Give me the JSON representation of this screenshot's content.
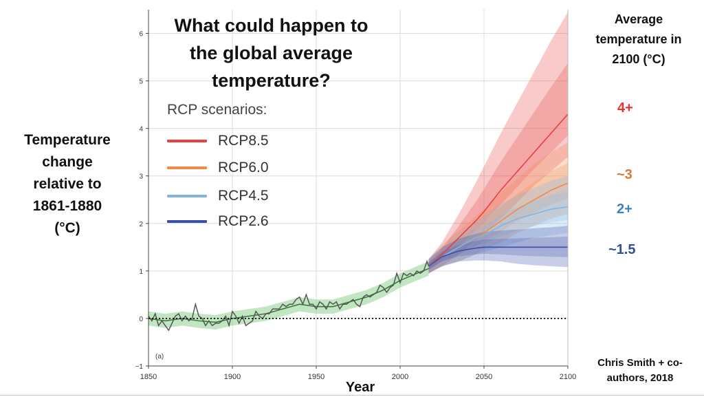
{
  "chart_data": {
    "type": "line",
    "title": "What could happen to the global average temperature?",
    "title_lines": [
      "What could happen to",
      "the global average",
      "temperature?"
    ],
    "xlabel": "Year",
    "ylabel": "Temperature change relative to 1861-1880 (°C)",
    "ylabel_lines": [
      "Temperature",
      "change",
      "relative to",
      "1861-1880",
      "(°C)"
    ],
    "xlim": [
      1850,
      2100
    ],
    "ylim": [
      -1,
      6.5
    ],
    "x_ticks": [
      "1850",
      "1900",
      "1950",
      "2000",
      "2050",
      "2100"
    ],
    "y_ticks": [
      "−1",
      "0",
      "1",
      "2",
      "3",
      "4",
      "5",
      "6"
    ],
    "grid": true,
    "zero_line": "dotted",
    "panel_label": "(a)",
    "legend": {
      "title": "RCP scenarios:",
      "placement": "left-inside",
      "items": [
        {
          "name": "RCP8.5",
          "color": "#e8403f"
        },
        {
          "name": "RCP6.0",
          "color": "#f0894a"
        },
        {
          "name": "RCP4.5",
          "color": "#7eb6e6"
        },
        {
          "name": "RCP2.6",
          "color": "#3b4fa8"
        }
      ]
    },
    "observations": {
      "color": "#555555",
      "x": [
        1850,
        1852,
        1854,
        1856,
        1858,
        1860,
        1862,
        1864,
        1866,
        1868,
        1870,
        1872,
        1874,
        1876,
        1878,
        1880,
        1882,
        1884,
        1886,
        1888,
        1890,
        1892,
        1894,
        1896,
        1898,
        1900,
        1902,
        1904,
        1906,
        1908,
        1910,
        1912,
        1914,
        1916,
        1918,
        1920,
        1922,
        1924,
        1926,
        1928,
        1930,
        1932,
        1934,
        1936,
        1938,
        1940,
        1942,
        1944,
        1946,
        1948,
        1950,
        1952,
        1954,
        1956,
        1958,
        1960,
        1962,
        1964,
        1966,
        1968,
        1970,
        1972,
        1974,
        1976,
        1978,
        1980,
        1982,
        1984,
        1986,
        1988,
        1990,
        1992,
        1994,
        1996,
        1998,
        2000,
        2002,
        2004,
        2006,
        2008,
        2010,
        2012,
        2014,
        2016,
        2017
      ],
      "y": [
        0.05,
        -0.05,
        0.1,
        -0.15,
        -0.05,
        -0.15,
        -0.25,
        -0.1,
        0.05,
        0.1,
        -0.05,
        0.05,
        -0.05,
        0.0,
        0.3,
        0.05,
        0.0,
        -0.15,
        -0.05,
        -0.15,
        -0.1,
        -0.1,
        -0.05,
        0.05,
        -0.15,
        0.15,
        0.05,
        -0.1,
        0.05,
        -0.15,
        -0.1,
        -0.05,
        0.15,
        0.05,
        0.0,
        0.1,
        0.1,
        0.2,
        0.2,
        0.2,
        0.3,
        0.25,
        0.3,
        0.3,
        0.4,
        0.45,
        0.3,
        0.5,
        0.3,
        0.3,
        0.2,
        0.35,
        0.3,
        0.2,
        0.35,
        0.3,
        0.35,
        0.2,
        0.3,
        0.3,
        0.35,
        0.4,
        0.3,
        0.25,
        0.45,
        0.5,
        0.45,
        0.5,
        0.55,
        0.7,
        0.65,
        0.55,
        0.65,
        0.7,
        0.95,
        0.75,
        0.95,
        0.9,
        0.95,
        0.9,
        1.0,
        0.95,
        1.0,
        1.2,
        1.1
      ]
    },
    "historical_model": {
      "color": "#3a7a3a",
      "band_color": "#8fcf8f",
      "x": [
        1850,
        1860,
        1870,
        1880,
        1890,
        1900,
        1910,
        1920,
        1930,
        1940,
        1950,
        1960,
        1970,
        1980,
        1990,
        2000,
        2010,
        2017
      ],
      "y": [
        0.0,
        -0.05,
        0.0,
        -0.05,
        -0.08,
        0.0,
        0.05,
        0.1,
        0.2,
        0.3,
        0.25,
        0.25,
        0.35,
        0.45,
        0.6,
        0.8,
        0.95,
        1.05
      ],
      "band_halfwidth": 0.15
    },
    "x": [
      2017,
      2025,
      2035,
      2045,
      2050,
      2060,
      2070,
      2080,
      2090,
      2100
    ],
    "series": [
      {
        "name": "RCP8.5",
        "color": "#e8403f",
        "y": [
          1.1,
          1.35,
          1.7,
          2.05,
          2.25,
          2.7,
          3.1,
          3.5,
          3.9,
          4.3
        ],
        "lower": [
          0.95,
          1.1,
          1.35,
          1.65,
          1.8,
          2.1,
          2.45,
          2.8,
          3.1,
          3.4
        ],
        "upper": [
          1.25,
          1.6,
          2.2,
          2.85,
          3.2,
          3.9,
          4.55,
          5.2,
          5.85,
          6.45
        ]
      },
      {
        "name": "RCP6.0",
        "color": "#f0894a",
        "y": [
          1.1,
          1.3,
          1.5,
          1.7,
          1.8,
          2.05,
          2.3,
          2.5,
          2.7,
          2.85
        ],
        "lower": [
          0.95,
          1.1,
          1.2,
          1.35,
          1.45,
          1.6,
          1.8,
          1.95,
          2.1,
          2.2
        ],
        "upper": [
          1.25,
          1.55,
          1.85,
          2.15,
          2.3,
          2.65,
          2.95,
          3.25,
          3.5,
          3.7
        ]
      },
      {
        "name": "RCP4.5",
        "color": "#7eb6e6",
        "y": [
          1.1,
          1.3,
          1.5,
          1.7,
          1.75,
          1.95,
          2.1,
          2.2,
          2.3,
          2.35
        ],
        "lower": [
          0.95,
          1.1,
          1.2,
          1.35,
          1.4,
          1.5,
          1.6,
          1.7,
          1.75,
          1.8
        ],
        "upper": [
          1.25,
          1.5,
          1.8,
          2.05,
          2.15,
          2.4,
          2.6,
          2.75,
          2.9,
          3.0
        ]
      },
      {
        "name": "RCP2.6",
        "color": "#3b4fa8",
        "y": [
          1.1,
          1.3,
          1.42,
          1.48,
          1.5,
          1.5,
          1.5,
          1.5,
          1.5,
          1.5
        ],
        "lower": [
          0.95,
          1.1,
          1.2,
          1.22,
          1.22,
          1.2,
          1.15,
          1.12,
          1.1,
          1.08
        ],
        "upper": [
          1.25,
          1.5,
          1.68,
          1.78,
          1.82,
          1.85,
          1.87,
          1.9,
          1.92,
          1.95
        ]
      }
    ]
  },
  "right_panel": {
    "heading_lines": [
      "Average",
      "temperature in",
      "2100 (°C)"
    ],
    "values": [
      {
        "label": "4+",
        "color": "#e5322b"
      },
      {
        "label": "~3",
        "color": "#d07a3c"
      },
      {
        "label": "2+",
        "color": "#3f7fc4"
      },
      {
        "label": "~1.5",
        "color": "#2f4f97"
      }
    ]
  },
  "credit_lines": [
    "Chris Smith + co-",
    "authors, 2018"
  ]
}
